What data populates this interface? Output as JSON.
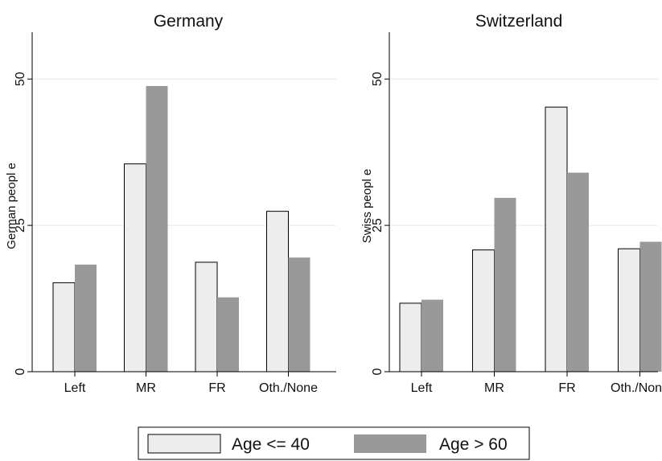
{
  "chart_data": [
    {
      "type": "bar",
      "title": "Germany",
      "ylabel": "German peopl e",
      "xlabel": "",
      "categories": [
        "Left",
        "MR",
        "FR",
        "Oth./None"
      ],
      "yticks": [
        "0",
        "25",
        "50"
      ],
      "ylim": [
        0,
        58
      ],
      "grid": true,
      "series": [
        {
          "name": "Age <= 40",
          "values": [
            15.2,
            35.5,
            18.7,
            27.4
          ]
        },
        {
          "name": "Age > 60",
          "values": [
            18.3,
            48.8,
            12.7,
            19.5
          ]
        }
      ]
    },
    {
      "type": "bar",
      "title": "Switzerland",
      "ylabel": "Swiss peopl e",
      "xlabel": "",
      "categories": [
        "Left",
        "MR",
        "FR",
        "Oth./None"
      ],
      "yticks": [
        "0",
        "25",
        "50"
      ],
      "ylim": [
        0,
        58
      ],
      "grid": true,
      "series": [
        {
          "name": "Age <= 40",
          "values": [
            11.7,
            20.8,
            45.2,
            21.0
          ]
        },
        {
          "name": "Age > 60",
          "values": [
            12.3,
            29.7,
            34.0,
            22.2
          ]
        }
      ]
    }
  ],
  "legend": {
    "placement": "bottom",
    "items": [
      {
        "label": "Age <= 40",
        "color": "#ededed"
      },
      {
        "label": "Age > 60",
        "color": "#999999"
      }
    ]
  },
  "colors": {
    "bar_light": "#ededed",
    "bar_dark": "#999999",
    "axis": "#000000",
    "grid": "#e6e6e6"
  }
}
